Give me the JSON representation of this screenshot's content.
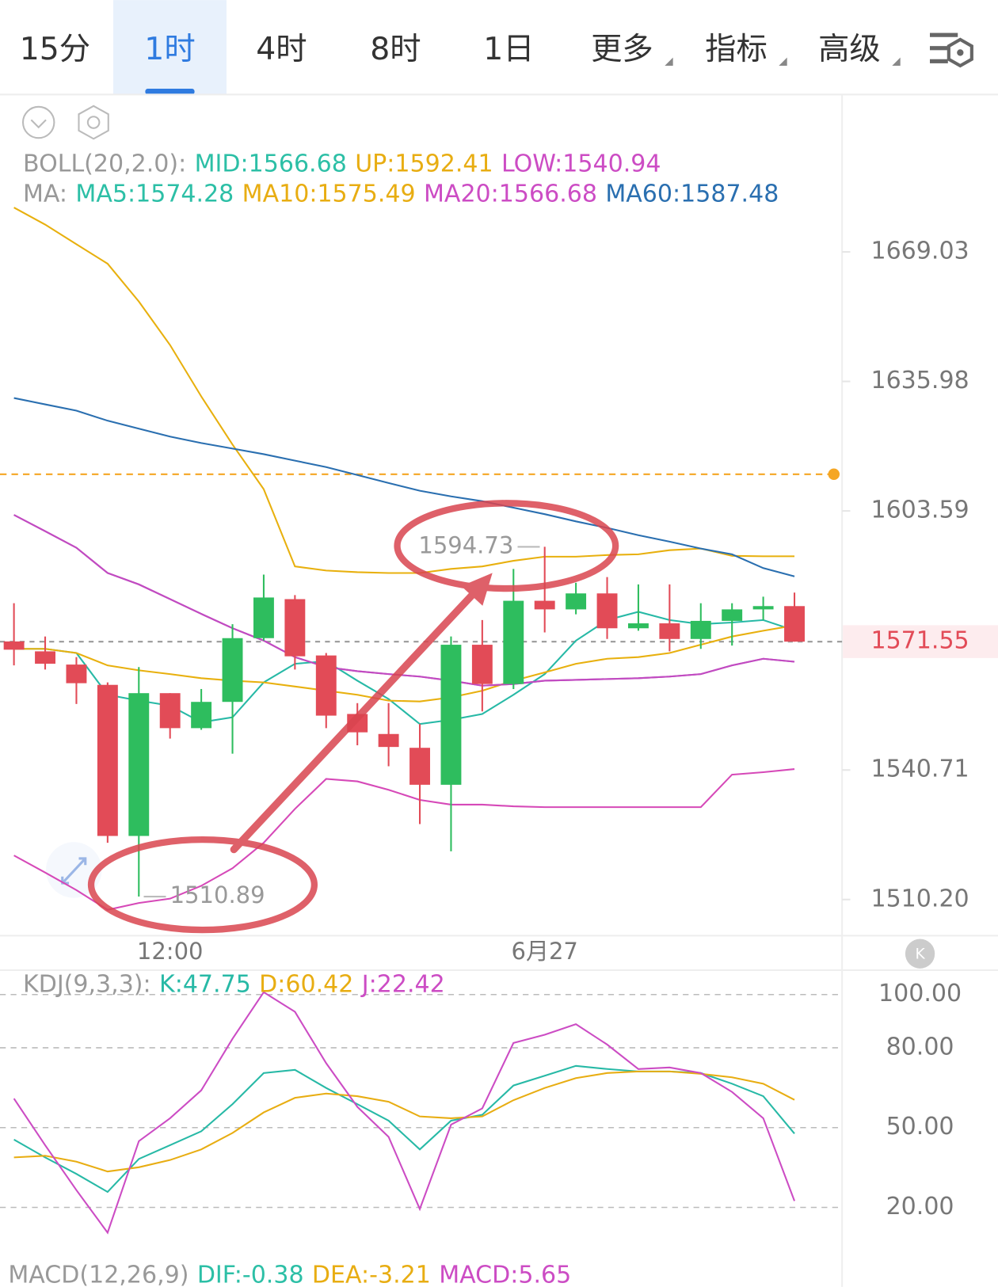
{
  "tabs": [
    {
      "text": "15分"
    },
    {
      "text": "1时"
    },
    {
      "text": "4时"
    },
    {
      "text": "8时"
    },
    {
      "text": "1日"
    },
    {
      "text": "更多",
      "dropdown": true
    },
    {
      "text": "指标",
      "dropdown": true
    },
    {
      "text": "高级",
      "dropdown": true
    }
  ],
  "selected_tab": 1,
  "kline_button": "K",
  "macd": {
    "title": "MACD(12,26,9)",
    "items": [
      {
        "text": "DIF:-0.38",
        "color": "#2cbfa6"
      },
      {
        "text": "DEA:-3.21",
        "color": "#e8ad12"
      },
      {
        "text": "MACD:5.65",
        "color": "#cc4cc4"
      }
    ]
  },
  "chart_data": [
    {
      "type": "candlestick",
      "categories": [
        null,
        null,
        null,
        null,
        null,
        "12:00",
        null,
        null,
        null,
        null,
        null,
        null,
        null,
        null,
        null,
        null,
        null,
        "6月27",
        null,
        null,
        null,
        null,
        null,
        null,
        null,
        null
      ],
      "open": [
        1571.6,
        1569.2,
        1566.0,
        1561.1,
        1525.1,
        1559.1,
        1550.7,
        1557.0,
        1572.4,
        1581.9,
        1568.2,
        1554.1,
        1549.3,
        1546.0,
        1537.2,
        1570.8,
        1561.3,
        1581.5,
        1579.4,
        1583.3,
        1574.8,
        1576.0,
        1572.2,
        1576.6,
        1579.4,
        1580.2
      ],
      "high": [
        1580.9,
        1572.8,
        1567.8,
        1561.7,
        1565.4,
        1559.1,
        1560.1,
        1575.8,
        1587.9,
        1582.9,
        1568.8,
        1556.7,
        1556.7,
        1551.7,
        1572.8,
        1576.8,
        1589.3,
        1594.73,
        1585.9,
        1587.3,
        1585.5,
        1585.5,
        1580.9,
        1580.9,
        1582.5,
        1583.5
      ],
      "low": [
        1565.8,
        1564.8,
        1556.5,
        1523.5,
        1510.89,
        1548.2,
        1550.3,
        1544.6,
        1571.8,
        1564.8,
        1550.7,
        1546.6,
        1541.6,
        1527.9,
        1521.5,
        1554.7,
        1560.1,
        1573.8,
        1578.2,
        1572.2,
        1574.2,
        1569.2,
        1569.8,
        1570.6,
        1576.8,
        1571.55
      ],
      "close": [
        1569.6,
        1566.2,
        1561.5,
        1525.1,
        1559.1,
        1550.7,
        1557.0,
        1572.4,
        1582.3,
        1568.0,
        1553.7,
        1549.7,
        1546.2,
        1537.2,
        1570.8,
        1561.3,
        1581.5,
        1579.4,
        1583.3,
        1574.8,
        1576.0,
        1572.2,
        1576.6,
        1579.4,
        1580.2,
        1571.55
      ],
      "up_color": "#2ebd5e",
      "down_color": "#e24b57",
      "log": true,
      "ylim": [
        1501.8,
        1710.1
      ],
      "yticks": [
        1669.03,
        1635.98,
        1603.59,
        1540.71,
        {
          "value": 1510.2,
          "label": "1510.20"
        }
      ],
      "alert_line": {
        "value": 1612.7,
        "color": "#f5a623"
      },
      "legend_prefixes": [
        "BOLL(20,2.0):",
        "MA:"
      ],
      "series": [
        {
          "name": "MID:1566.68",
          "legend_row": 0,
          "color": "#c14bc1",
          "label_color": "#2cbfa6",
          "values": [
            1602.6,
            1598.6,
            1594.5,
            1588.3,
            1585.5,
            1581.9,
            1578.3,
            1574.8,
            1571.8,
            1567.8,
            1565.4,
            1564.4,
            1563.7,
            1563.1,
            1562.1,
            1560.9,
            1561.3,
            1562.1,
            1562.3,
            1562.5,
            1562.7,
            1563.1,
            1563.7,
            1565.8,
            1567.4,
            1566.68
          ]
        },
        {
          "name": "UP:1592.41",
          "legend_row": 0,
          "color": "#e8b00e",
          "label_color": "#e8ad12",
          "values": [
            1680.5,
            1676.1,
            1671.0,
            1666.0,
            1656.3,
            1645.2,
            1632.2,
            1620.1,
            1609.0,
            1589.9,
            1588.9,
            1588.5,
            1588.3,
            1588.3,
            1589.3,
            1589.9,
            1591.3,
            1592.3,
            1592.3,
            1592.7,
            1592.9,
            1593.9,
            1594.3,
            1592.5,
            1592.4,
            1592.41
          ]
        },
        {
          "name": "LOW:1540.94",
          "legend_row": 0,
          "color": "#d649b8",
          "label_color": "#cc4cc4",
          "values": [
            1520.5,
            1516.5,
            1512.4,
            1507.8,
            1509.4,
            1510.4,
            1513.4,
            1517.5,
            1523.5,
            1531.5,
            1538.6,
            1538.0,
            1536.0,
            1533.6,
            1532.5,
            1532.5,
            1532.1,
            1531.9,
            1531.9,
            1531.9,
            1531.9,
            1531.9,
            1531.9,
            1539.6,
            1540.2,
            1540.94
          ]
        },
        {
          "name": "MA5:1574.28",
          "legend_row": 1,
          "color": "#27b9a6",
          "label_color": "#2cbfa6",
          "values": [
            1569.8,
            1569.8,
            1568.8,
            1558.7,
            1557.3,
            1556.1,
            1552.1,
            1553.3,
            1561.7,
            1566.2,
            1566.8,
            1562.1,
            1557.7,
            1551.7,
            1552.7,
            1554.1,
            1558.7,
            1563.7,
            1571.8,
            1576.8,
            1578.8,
            1576.8,
            1575.8,
            1576.2,
            1576.8,
            1574.28
          ]
        },
        {
          "name": "MA10:1575.49",
          "legend_row": 1,
          "color": "#e8b00e",
          "label_color": "#e8ad12",
          "values": [
            1569.8,
            1569.8,
            1568.8,
            1565.8,
            1564.6,
            1563.7,
            1562.7,
            1562.1,
            1561.7,
            1560.7,
            1559.7,
            1558.7,
            1557.3,
            1557.1,
            1558.1,
            1559.7,
            1562.1,
            1564.1,
            1566.2,
            1567.4,
            1567.8,
            1568.8,
            1570.8,
            1572.8,
            1574.2,
            1575.49
          ]
        },
        {
          "name": "MA20:1566.68",
          "legend_row": 1,
          "color": "#c14bc1",
          "label_color": "#cc4cc4",
          "values": [
            1602.6,
            1598.6,
            1594.5,
            1588.3,
            1585.5,
            1581.9,
            1578.3,
            1574.8,
            1571.8,
            1567.8,
            1565.4,
            1564.4,
            1563.7,
            1563.1,
            1562.1,
            1560.9,
            1561.3,
            1562.1,
            1562.3,
            1562.5,
            1562.7,
            1563.1,
            1563.7,
            1565.8,
            1567.4,
            1566.68
          ]
        },
        {
          "name": "MA60:1587.48",
          "legend_row": 1,
          "color": "#2a6fb0",
          "label_color": "#2a6fb0",
          "values": [
            1631.8,
            1630.2,
            1628.6,
            1626.1,
            1624.1,
            1622.1,
            1620.5,
            1619.1,
            1617.7,
            1616.1,
            1614.5,
            1612.5,
            1610.5,
            1608.6,
            1607.2,
            1606.0,
            1604.4,
            1602.8,
            1601.0,
            1599.4,
            1597.6,
            1596.0,
            1594.3,
            1592.9,
            1589.5,
            1587.48
          ]
        }
      ]
    },
    {
      "type": "line",
      "legend_prefix": "KDJ(9,3,3):",
      "ylim": [
        0.3,
        109.8
      ],
      "yticks": [
        {
          "value": 100,
          "label": "100.00"
        },
        {
          "value": 80,
          "label": "80.00"
        },
        {
          "value": 50,
          "label": "50.00"
        },
        {
          "value": 20,
          "label": "20.00"
        }
      ],
      "grid": true,
      "series": [
        {
          "name": "K:47.75",
          "color": "#27b9a6",
          "values": [
            45.5,
            38.8,
            32.6,
            25.8,
            38.2,
            43.4,
            48.6,
            58.8,
            70.5,
            71.7,
            64.9,
            58.8,
            52.6,
            41.8,
            52.6,
            54.8,
            65.8,
            69.5,
            73.2,
            72.0,
            71.1,
            71.1,
            70.5,
            66.5,
            61.8,
            47.75
          ]
        },
        {
          "name": "D:60.42",
          "color": "#e8ad12",
          "values": [
            38.8,
            39.4,
            37.2,
            33.5,
            35.1,
            37.8,
            41.8,
            48.0,
            55.7,
            61.2,
            62.8,
            61.8,
            59.7,
            54.2,
            53.5,
            54.2,
            60.3,
            64.9,
            68.6,
            70.5,
            71.1,
            71.1,
            70.2,
            68.9,
            66.5,
            60.42
          ]
        },
        {
          "name": "J:22.42",
          "color": "#cc4cc4",
          "values": [
            60.9,
            43.4,
            26.5,
            10.5,
            44.9,
            53.5,
            64.0,
            83.4,
            100.9,
            93.5,
            74.2,
            57.8,
            46.5,
            19.4,
            51.1,
            57.2,
            81.8,
            84.9,
            88.9,
            81.2,
            72.0,
            72.6,
            70.5,
            63.4,
            53.5,
            22.42
          ]
        }
      ]
    }
  ]
}
